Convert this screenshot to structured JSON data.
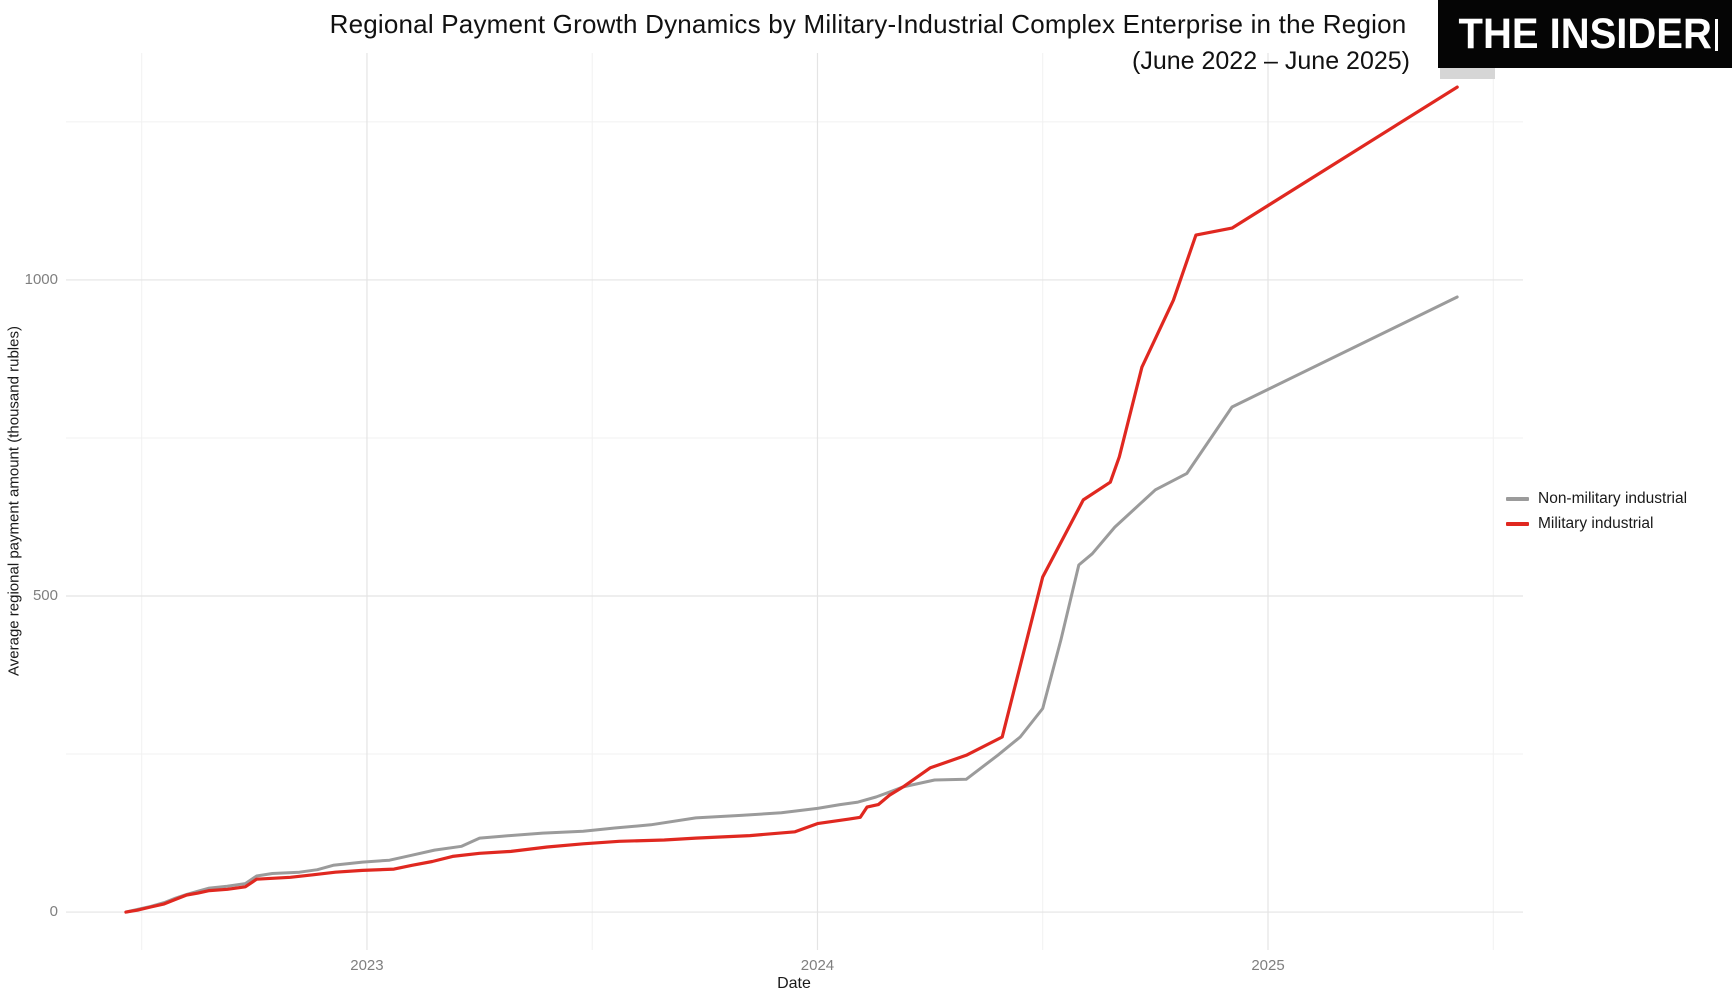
{
  "header": {
    "title": "Regional Payment Growth Dynamics by Military-Industrial Complex Enterprise in the Region",
    "subtitle": "(June 2022 – June 2025)",
    "logo_text": "THE INSIDER"
  },
  "chart_data": {
    "type": "line",
    "title": "Regional Payment Growth Dynamics by Military-Industrial Complex Enterprise in the Region",
    "subtitle": "(June 2022 – June 2025)",
    "xlabel": "Date",
    "ylabel": "Average regional payment amount (thousand rubles)",
    "grid": true,
    "legend_position": "right",
    "x_domain": [
      2022.332,
      2025.566
    ],
    "y_domain": [
      -60,
      1359
    ],
    "x_ticks": [
      {
        "label": "2023",
        "value": 2023
      },
      {
        "label": "2024",
        "value": 2024
      },
      {
        "label": "2025",
        "value": 2025
      }
    ],
    "x_minor_ticks": [
      2022.5,
      2023.5,
      2024.5,
      2025.5
    ],
    "y_ticks": [
      {
        "label": "0",
        "value": 0
      },
      {
        "label": "500",
        "value": 500
      },
      {
        "label": "1000",
        "value": 1000
      }
    ],
    "y_minor_ticks": [
      250,
      750,
      1250
    ],
    "series": [
      {
        "name": "Non-military industrial",
        "color": "#9b9b9b",
        "width": 3,
        "points": [
          [
            2022.465,
            0
          ],
          [
            2022.49,
            4
          ],
          [
            2022.52,
            9
          ],
          [
            2022.55,
            15
          ],
          [
            2022.575,
            22
          ],
          [
            2022.6,
            28
          ],
          [
            2022.625,
            33
          ],
          [
            2022.65,
            38
          ],
          [
            2022.69,
            41
          ],
          [
            2022.73,
            45
          ],
          [
            2022.755,
            57
          ],
          [
            2022.79,
            61
          ],
          [
            2022.85,
            63
          ],
          [
            2022.89,
            67
          ],
          [
            2022.925,
            74
          ],
          [
            2022.99,
            79
          ],
          [
            2023.05,
            82
          ],
          [
            2023.1,
            90
          ],
          [
            2023.15,
            98
          ],
          [
            2023.21,
            104
          ],
          [
            2023.25,
            117
          ],
          [
            2023.3,
            120
          ],
          [
            2023.39,
            125
          ],
          [
            2023.48,
            128
          ],
          [
            2023.55,
            133
          ],
          [
            2023.63,
            138
          ],
          [
            2023.73,
            149
          ],
          [
            2023.83,
            153
          ],
          [
            2023.92,
            157
          ],
          [
            2024.0,
            164
          ],
          [
            2024.05,
            170
          ],
          [
            2024.09,
            174
          ],
          [
            2024.13,
            182
          ],
          [
            2024.16,
            190
          ],
          [
            2024.19,
            198
          ],
          [
            2024.26,
            209
          ],
          [
            2024.33,
            210
          ],
          [
            2024.4,
            248
          ],
          [
            2024.45,
            277
          ],
          [
            2024.5,
            322
          ],
          [
            2024.54,
            430
          ],
          [
            2024.58,
            549
          ],
          [
            2024.61,
            567
          ],
          [
            2024.66,
            609
          ],
          [
            2024.75,
            668
          ],
          [
            2024.82,
            694
          ],
          [
            2024.92,
            799
          ],
          [
            2025.42,
            973
          ]
        ]
      },
      {
        "name": "Military industrial",
        "color": "#e02820",
        "width": 3.2,
        "points": [
          [
            2022.465,
            0
          ],
          [
            2022.49,
            3
          ],
          [
            2022.52,
            8
          ],
          [
            2022.55,
            13
          ],
          [
            2022.575,
            20
          ],
          [
            2022.6,
            27
          ],
          [
            2022.625,
            30
          ],
          [
            2022.65,
            34
          ],
          [
            2022.69,
            36
          ],
          [
            2022.73,
            40
          ],
          [
            2022.755,
            52
          ],
          [
            2022.83,
            55
          ],
          [
            2022.88,
            59
          ],
          [
            2022.93,
            63
          ],
          [
            2022.99,
            66
          ],
          [
            2023.06,
            68
          ],
          [
            2023.1,
            74
          ],
          [
            2023.145,
            80
          ],
          [
            2023.19,
            88
          ],
          [
            2023.25,
            93
          ],
          [
            2023.32,
            96
          ],
          [
            2023.4,
            103
          ],
          [
            2023.48,
            108
          ],
          [
            2023.56,
            112
          ],
          [
            2023.66,
            114
          ],
          [
            2023.73,
            117
          ],
          [
            2023.85,
            121
          ],
          [
            2023.95,
            127
          ],
          [
            2024.0,
            140
          ],
          [
            2024.07,
            147
          ],
          [
            2024.095,
            150
          ],
          [
            2024.11,
            166
          ],
          [
            2024.135,
            170
          ],
          [
            2024.16,
            185
          ],
          [
            2024.19,
            198
          ],
          [
            2024.25,
            228
          ],
          [
            2024.33,
            248
          ],
          [
            2024.41,
            277
          ],
          [
            2024.5,
            530
          ],
          [
            2024.59,
            652
          ],
          [
            2024.65,
            680
          ],
          [
            2024.67,
            720
          ],
          [
            2024.72,
            862
          ],
          [
            2024.79,
            968
          ],
          [
            2024.84,
            1071
          ],
          [
            2024.92,
            1082
          ],
          [
            2025.42,
            1305
          ]
        ]
      }
    ]
  },
  "legend": {
    "items": [
      {
        "label": "Non-military industrial",
        "color": "#9b9b9b"
      },
      {
        "label": "Military industrial",
        "color": "#e02820"
      }
    ]
  },
  "colors": {
    "background": "#ffffff",
    "major_grid": "#e4e4e4",
    "minor_grid": "#f1f1f1",
    "tick_text": "#7f7f7f",
    "text": "#1a1a1a",
    "logo_bg": "#050505",
    "logo_fg": "#ffffff"
  }
}
